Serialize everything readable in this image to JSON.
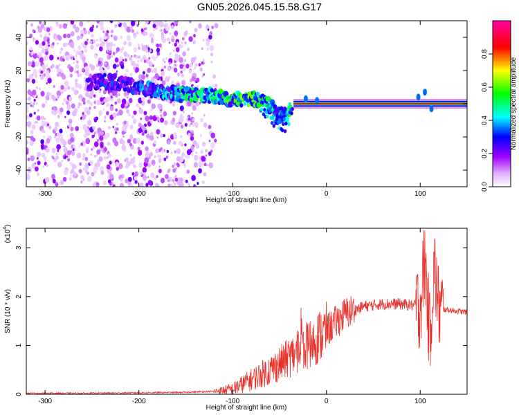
{
  "title": "GN05.2026.045.15.58.G17",
  "chart_data": [
    {
      "type": "heatmap",
      "xlabel": "Height of straight line (km)",
      "ylabel": "Frequency (Hz)",
      "xlim": [
        -320,
        150
      ],
      "ylim": [
        -50,
        50
      ],
      "xticks": [
        -300,
        -200,
        -100,
        0,
        100
      ],
      "yticks": [
        -40,
        -20,
        0,
        20,
        40
      ],
      "colorbar": {
        "label": "Normalized spectral amplitude",
        "range": [
          0,
          1
        ],
        "ticks": [
          "0.0",
          "0.2",
          "0.4",
          "0.6",
          "0.8"
        ],
        "colormap": [
          "#ffffff",
          "#a000ff",
          "#0000ff",
          "#00ffff",
          "#00ff00",
          "#ffff00",
          "#ff0000",
          "#ff00ff"
        ]
      },
      "ridge": {
        "x": [
          -250,
          -240,
          -220,
          -200,
          -180,
          -160,
          -140,
          -120,
          -100,
          -80,
          -65,
          -55,
          -45,
          -35,
          -30,
          -20,
          -10,
          0,
          50,
          100,
          150
        ],
        "frequency": [
          12,
          14,
          12,
          10,
          7,
          6,
          5,
          5,
          3,
          3,
          1,
          -4,
          -8,
          0,
          -1,
          1,
          0,
          0,
          0,
          0,
          0
        ],
        "amplitude": [
          0.25,
          0.3,
          0.3,
          0.35,
          0.4,
          0.45,
          0.5,
          0.5,
          0.55,
          0.6,
          0.55,
          0.45,
          0.35,
          0.9,
          0.95,
          0.95,
          0.95,
          0.95,
          0.95,
          0.95,
          0.95
        ]
      }
    },
    {
      "type": "line",
      "xlabel": "Height of straight line (km)",
      "ylabel": "SNR (10 * v/v)",
      "yscale_label": "(x10",
      "yscale_exp": "4",
      "xlim": [
        -320,
        150
      ],
      "ylim": [
        0,
        3.4
      ],
      "xticks": [
        -300,
        -200,
        -100,
        0,
        100
      ],
      "yticks": [
        0,
        1,
        2,
        3
      ],
      "color": "#e8322c",
      "series": [
        {
          "x": [
            -320,
            -250,
            -200,
            -150,
            -120,
            -100,
            -80,
            -60,
            -40,
            -20,
            0,
            20,
            40,
            60,
            80,
            100,
            105,
            110,
            115,
            120,
            150
          ],
          "y": [
            0.02,
            0.02,
            0.03,
            0.04,
            0.06,
            0.1,
            0.3,
            0.5,
            0.75,
            1.0,
            1.3,
            1.65,
            1.8,
            1.85,
            1.85,
            1.8,
            2.8,
            1.2,
            2.6,
            1.75,
            1.68
          ]
        }
      ]
    }
  ]
}
